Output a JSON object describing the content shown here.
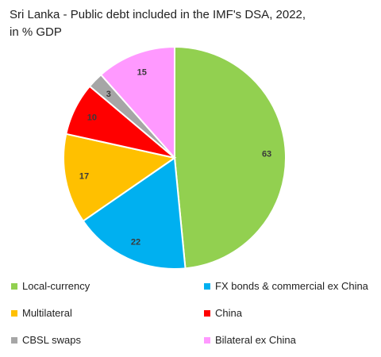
{
  "title_line1": "Sri Lanka - Public debt included in the IMF's DSA, 2022,",
  "title_line2": "in % GDP",
  "chart_data": {
    "type": "pie",
    "title": "Sri Lanka - Public debt included in the IMF's DSA, 2022, in % GDP",
    "slices": [
      {
        "name": "Local-currency",
        "value": 63,
        "color": "#92d050"
      },
      {
        "name": "FX bonds & commercial ex China",
        "value": 22,
        "color": "#00b0f0"
      },
      {
        "name": "Multilateral",
        "value": 17,
        "color": "#ffc000"
      },
      {
        "name": "China",
        "value": 10,
        "color": "#ff0000"
      },
      {
        "name": "CBSL swaps",
        "value": 3,
        "color": "#a6a6a6"
      },
      {
        "name": "Bilateral ex China",
        "value": 15,
        "color": "#ff99ff"
      }
    ],
    "legend_position": "bottom"
  }
}
